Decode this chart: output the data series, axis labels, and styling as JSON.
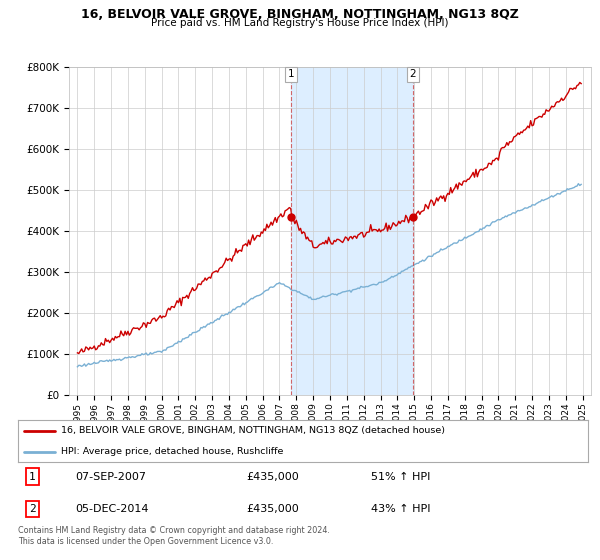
{
  "title": "16, BELVOIR VALE GROVE, BINGHAM, NOTTINGHAM, NG13 8QZ",
  "subtitle": "Price paid vs. HM Land Registry's House Price Index (HPI)",
  "legend_line1": "16, BELVOIR VALE GROVE, BINGHAM, NOTTINGHAM, NG13 8QZ (detached house)",
  "legend_line2": "HPI: Average price, detached house, Rushcliffe",
  "annotation1": {
    "label": "1",
    "date": "07-SEP-2007",
    "price": "£435,000",
    "hpi": "51% ↑ HPI",
    "x_year": 2007.67
  },
  "annotation2": {
    "label": "2",
    "date": "05-DEC-2014",
    "price": "£435,000",
    "hpi": "43% ↑ HPI",
    "x_year": 2014.92
  },
  "footer": "Contains HM Land Registry data © Crown copyright and database right 2024.\nThis data is licensed under the Open Government Licence v3.0.",
  "red_color": "#cc0000",
  "blue_color": "#7ab0d4",
  "shade_color": "#ddeeff",
  "ylim": [
    0,
    800000
  ],
  "xlim_start": 1994.5,
  "xlim_end": 2025.5,
  "yticks": [
    0,
    100000,
    200000,
    300000,
    400000,
    500000,
    600000,
    700000,
    800000
  ],
  "ytick_labels": [
    "£0",
    "£100K",
    "£200K",
    "£300K",
    "£400K",
    "£500K",
    "£600K",
    "£700K",
    "£800K"
  ]
}
